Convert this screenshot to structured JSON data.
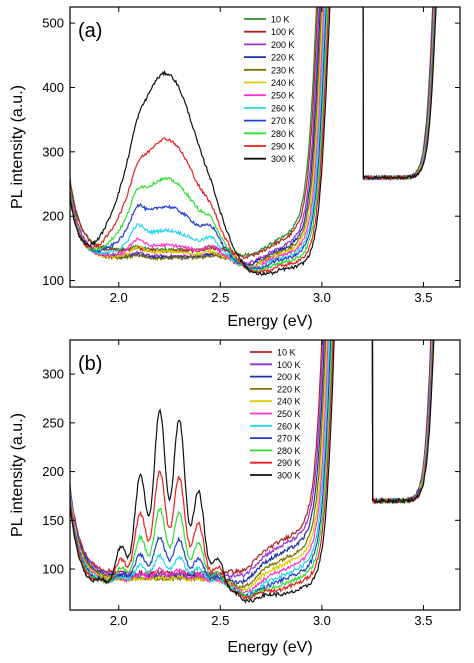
{
  "chart_data": [
    {
      "type": "line",
      "panel_label": "(a)",
      "xlabel": "Energy (eV)",
      "ylabel": "PL intensity (a.u.)",
      "xlim": [
        1.76,
        3.68
      ],
      "ylim": [
        90,
        525
      ],
      "x_ticks": [
        2.0,
        2.5,
        3.0,
        3.5
      ],
      "x_tick_labels": [
        "2.0",
        "2.5",
        "3.0",
        "3.5"
      ],
      "y_ticks": [
        100,
        200,
        300,
        400,
        500
      ],
      "y_tick_labels": [
        "100",
        "200",
        "300",
        "400",
        "500"
      ],
      "legend_position": "top-right",
      "series": [
        {
          "name": "10 K",
          "color": "#2e8b2e",
          "peak_value": 0,
          "bump_values": [
            0,
            0
          ],
          "baseline": 148,
          "edge_shift": 0.0,
          "rise_start": 2.62
        },
        {
          "name": "100 K",
          "color": "#b22222",
          "peak_value": 0,
          "bump_values": [
            0,
            0
          ],
          "baseline": 146,
          "edge_shift": 0.005,
          "rise_start": 2.63
        },
        {
          "name": "200 K",
          "color": "#9932cc",
          "peak_value": 120,
          "bump_values": [
            128,
            128
          ],
          "baseline": 138,
          "edge_shift": 0.01,
          "rise_start": 2.64
        },
        {
          "name": "220 K",
          "color": "#1a2fa8",
          "peak_value": 128,
          "bump_values": [
            134,
            132
          ],
          "baseline": 136,
          "edge_shift": 0.015,
          "rise_start": 2.65
        },
        {
          "name": "230 K",
          "color": "#807000",
          "peak_value": 135,
          "bump_values": [
            140,
            138
          ],
          "baseline": 134,
          "edge_shift": 0.02,
          "rise_start": 2.66
        },
        {
          "name": "240 K",
          "color": "#ddcc00",
          "peak_value": 145,
          "bump_values": [
            148,
            146
          ],
          "baseline": 132,
          "edge_shift": 0.025,
          "rise_start": 2.67
        },
        {
          "name": "250 K",
          "color": "#ff33cc",
          "peak_value": 155,
          "bump_values": [
            158,
            155
          ],
          "baseline": 130,
          "edge_shift": 0.03,
          "rise_start": 2.68
        },
        {
          "name": "260 K",
          "color": "#22d8e8",
          "peak_value": 178,
          "bump_values": [
            165,
            160
          ],
          "baseline": 128,
          "edge_shift": 0.035,
          "rise_start": 2.69
        },
        {
          "name": "270 K",
          "color": "#1f3fd0",
          "peak_value": 215,
          "bump_values": [
            170,
            165
          ],
          "baseline": 126,
          "edge_shift": 0.04,
          "rise_start": 2.7
        },
        {
          "name": "280 K",
          "color": "#33dd33",
          "peak_value": 258,
          "bump_values": [
            160,
            158
          ],
          "baseline": 122,
          "edge_shift": 0.045,
          "rise_start": 2.71
        },
        {
          "name": "290 K",
          "color": "#e82020",
          "peak_value": 320,
          "bump_values": [
            150,
            150
          ],
          "baseline": 118,
          "edge_shift": 0.05,
          "rise_start": 2.72
        },
        {
          "name": "300 K",
          "color": "#111111",
          "peak_value": 422,
          "bump_values": [
            140,
            140
          ],
          "baseline": 112,
          "edge_shift": 0.055,
          "rise_start": 2.73
        }
      ]
    },
    {
      "type": "line",
      "panel_label": "(b)",
      "xlabel": "Energy (eV)",
      "ylabel": "PL intensity (a.u.)",
      "xlim": [
        1.76,
        3.68
      ],
      "ylim": [
        58,
        335
      ],
      "x_ticks": [
        2.0,
        2.5,
        3.0,
        3.5
      ],
      "x_tick_labels": [
        "2.0",
        "2.5",
        "3.0",
        "3.5"
      ],
      "y_ticks": [
        100,
        150,
        200,
        250,
        300
      ],
      "y_tick_labels": [
        "100",
        "150",
        "200",
        "250",
        "300"
      ],
      "legend_position": "top-right",
      "series": [
        {
          "name": "10 K",
          "color": "#b22222",
          "peak_value": 0,
          "baseline": 96,
          "edge_shift": 0.0,
          "rise_start": 2.5
        },
        {
          "name": "100 K",
          "color": "#9932cc",
          "peak_value": 0,
          "baseline": 94,
          "edge_shift": 0.005,
          "rise_start": 2.52
        },
        {
          "name": "200 K",
          "color": "#1a2fa8",
          "peak_value": 80,
          "baseline": 92,
          "edge_shift": 0.01,
          "rise_start": 2.56
        },
        {
          "name": "220 K",
          "color": "#807000",
          "peak_value": 85,
          "baseline": 90,
          "edge_shift": 0.015,
          "rise_start": 2.6
        },
        {
          "name": "240 K",
          "color": "#ddcc00",
          "peak_value": 92,
          "baseline": 88,
          "edge_shift": 0.02,
          "rise_start": 2.63
        },
        {
          "name": "250 K",
          "color": "#ff33cc",
          "peak_value": 100,
          "baseline": 86,
          "edge_shift": 0.025,
          "rise_start": 2.66
        },
        {
          "name": "260 K",
          "color": "#22d8e8",
          "peak_value": 115,
          "baseline": 84,
          "edge_shift": 0.03,
          "rise_start": 2.69
        },
        {
          "name": "270 K",
          "color": "#1f3fd0",
          "peak_value": 135,
          "baseline": 82,
          "edge_shift": 0.035,
          "rise_start": 2.72
        },
        {
          "name": "280 K",
          "color": "#33dd33",
          "peak_value": 165,
          "baseline": 80,
          "edge_shift": 0.04,
          "rise_start": 2.75
        },
        {
          "name": "290 K",
          "color": "#e82020",
          "peak_value": 205,
          "baseline": 78,
          "edge_shift": 0.045,
          "rise_start": 2.78
        },
        {
          "name": "300 K",
          "color": "#111111",
          "peak_value": 270,
          "baseline": 74,
          "edge_shift": 0.05,
          "rise_start": 2.82
        }
      ]
    }
  ]
}
